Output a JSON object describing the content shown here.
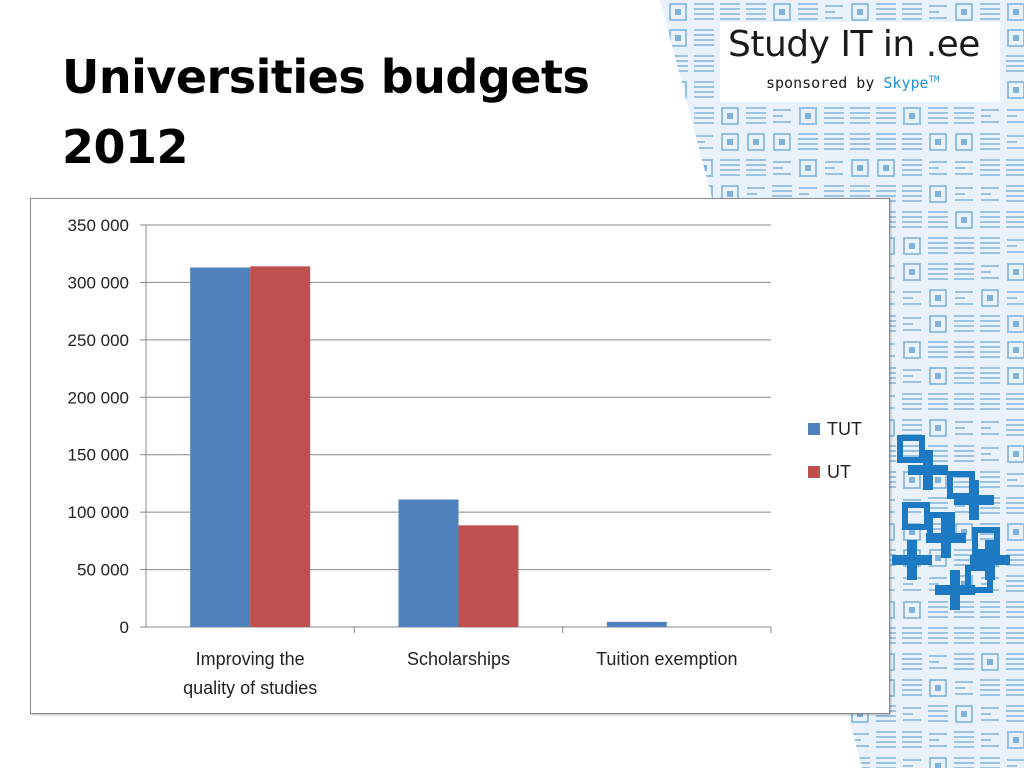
{
  "slide": {
    "title_line1": "Universities budgets",
    "title_line2": "2012"
  },
  "brand": {
    "title": "Study IT in .ee",
    "sponsored_prefix": "sponsored by ",
    "sponsor": "Skype",
    "trademark": "TM"
  },
  "colors": {
    "tut": "#4f81bd",
    "ut": "#c0504d",
    "pattern": "#2a7fc4"
  },
  "chart_data": {
    "type": "bar",
    "title": "",
    "xlabel": "",
    "ylabel": "",
    "categories": [
      [
        "Improving the",
        "quality of studies"
      ],
      [
        "Scholarships"
      ],
      [
        "Tuition exemption"
      ]
    ],
    "series": [
      {
        "name": "TUT",
        "values": [
          313000,
          111000,
          4500
        ]
      },
      {
        "name": "UT",
        "values": [
          314000,
          88500,
          0
        ]
      }
    ],
    "ylim": [
      0,
      350000
    ],
    "yticks": [
      "0",
      "50 000",
      "100 000",
      "150 000",
      "200 000",
      "250 000",
      "300 000",
      "350 000"
    ],
    "grid": true,
    "legend_position": "right"
  }
}
